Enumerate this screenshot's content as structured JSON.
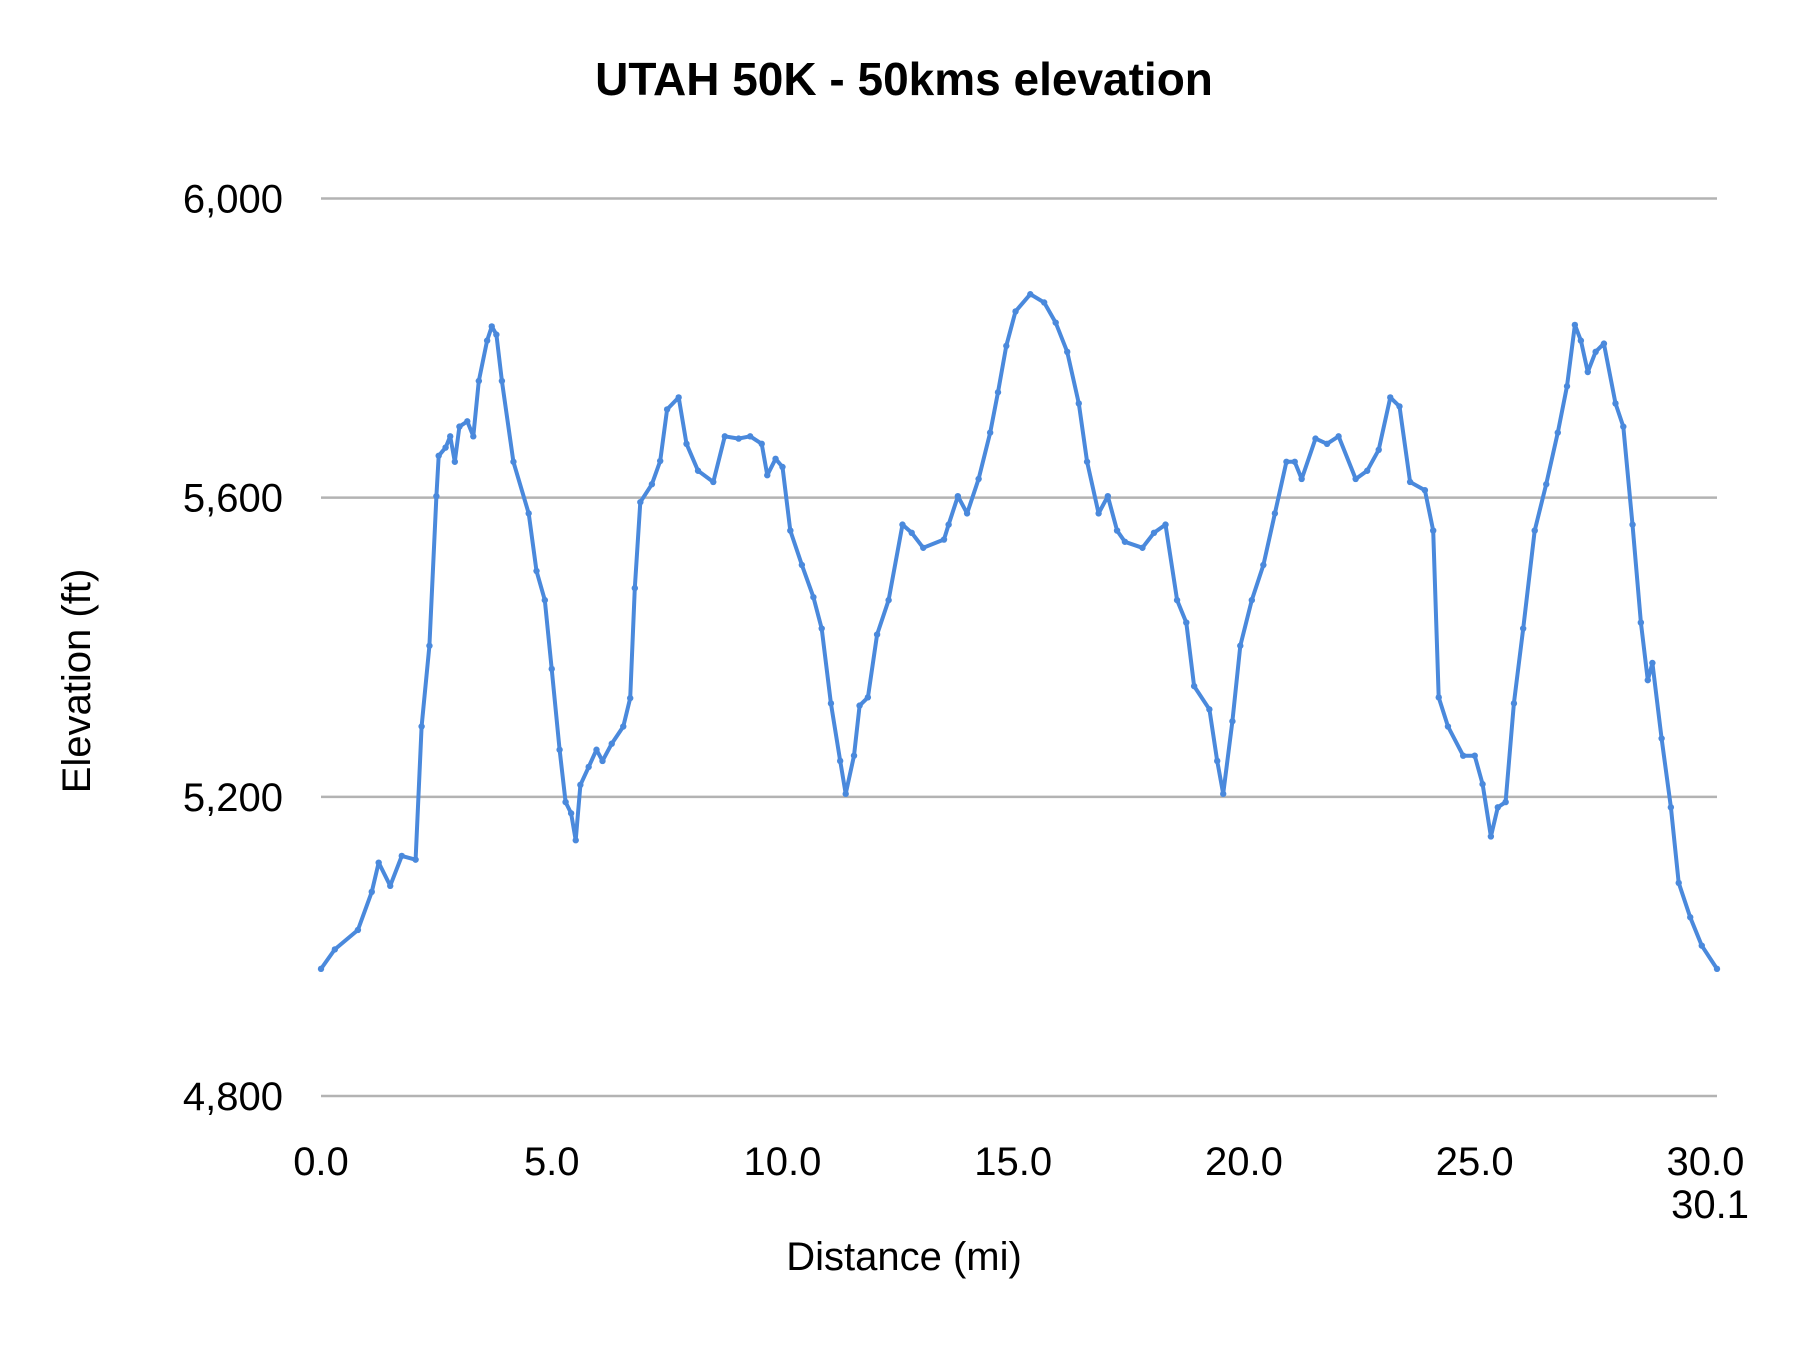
{
  "chart_data": {
    "type": "line",
    "title": "UTAH 50K - 50kms elevation",
    "xlabel": "Distance (mi)",
    "ylabel": "Elevation (ft)",
    "xlim": [
      0,
      30.25
    ],
    "ylim": [
      4800,
      6000
    ],
    "x_ticks": [
      "0.0",
      "5.0",
      "10.0",
      "15.0",
      "20.0",
      "25.0",
      "30.0",
      "30.1"
    ],
    "x_tick_values": [
      0,
      5,
      10,
      15,
      20,
      25,
      30,
      30.1
    ],
    "y_ticks": [
      "4,800",
      "5,200",
      "5,600",
      "6,000"
    ],
    "y_tick_values": [
      4800,
      5200,
      5600,
      6000
    ],
    "grid": "horizontal",
    "legend": "none",
    "colors": {
      "series": "#4a89dc",
      "grid": "#b3b3b3"
    },
    "series": [
      {
        "x": [
          0,
          0.3,
          0.8,
          1.1,
          1.25,
          1.5,
          1.75,
          2.05,
          2.18,
          2.35,
          2.5,
          2.55,
          2.7,
          2.8,
          2.9,
          3.0,
          3.17,
          3.3,
          3.42,
          3.6,
          3.7,
          3.8,
          3.92,
          4.17,
          4.5,
          4.67,
          4.85,
          5.0,
          5.17,
          5.3,
          5.42,
          5.52,
          5.62,
          5.8,
          5.97,
          6.1,
          6.3,
          6.55,
          6.7,
          6.8,
          6.92,
          7.17,
          7.35,
          7.5,
          7.75,
          7.92,
          8.17,
          8.5,
          8.75,
          9.05,
          9.3,
          9.55,
          9.67,
          9.85,
          10.0,
          10.17,
          10.42,
          10.67,
          10.85,
          11.05,
          11.25,
          11.37,
          11.55,
          11.67,
          11.85,
          12.05,
          12.3,
          12.6,
          12.8,
          13.05,
          13.5,
          13.6,
          13.8,
          14.0,
          14.25,
          14.5,
          14.67,
          14.85,
          15.05,
          15.37,
          15.67,
          15.92,
          16.17,
          16.42,
          16.6,
          16.85,
          17.05,
          17.25,
          17.42,
          17.8,
          18.05,
          18.3,
          18.55,
          18.75,
          18.92,
          19.25,
          19.42,
          19.55,
          19.75,
          19.92,
          20.17,
          20.42,
          20.67,
          20.92,
          21.1,
          21.25,
          21.55,
          21.8,
          22.05,
          22.42,
          22.67,
          22.92,
          23.17,
          23.37,
          23.6,
          23.92,
          24.1,
          24.22,
          24.42,
          24.75,
          25.0,
          25.17,
          25.35,
          25.5,
          25.67,
          25.85,
          26.05,
          26.3,
          26.55,
          26.8,
          27.0,
          27.17,
          27.3,
          27.45,
          27.62,
          27.8,
          28.05,
          28.22,
          28.42,
          28.6,
          28.75,
          28.85,
          29.05,
          29.25,
          29.42,
          29.67,
          29.92,
          30.25
        ],
        "y": [
          4970,
          4996,
          5022,
          5073,
          5112,
          5081,
          5121,
          5116,
          5294,
          5402,
          5602,
          5656,
          5667,
          5682,
          5648,
          5695,
          5702,
          5682,
          5756,
          5810,
          5829,
          5818,
          5756,
          5648,
          5579,
          5502,
          5463,
          5371,
          5263,
          5193,
          5178,
          5142,
          5216,
          5240,
          5263,
          5248,
          5271,
          5294,
          5332,
          5479,
          5594,
          5618,
          5649,
          5718,
          5734,
          5672,
          5636,
          5621,
          5682,
          5679,
          5682,
          5672,
          5630,
          5652,
          5641,
          5556,
          5510,
          5467,
          5425,
          5325,
          5248,
          5204,
          5255,
          5322,
          5333,
          5417,
          5463,
          5564,
          5553,
          5533,
          5544,
          5564,
          5602,
          5579,
          5625,
          5687,
          5741,
          5803,
          5849,
          5872,
          5861,
          5834,
          5795,
          5726,
          5648,
          5579,
          5602,
          5556,
          5541,
          5533,
          5553,
          5564,
          5463,
          5433,
          5348,
          5317,
          5248,
          5204,
          5301,
          5402,
          5463,
          5510,
          5579,
          5648,
          5648,
          5625,
          5679,
          5672,
          5682,
          5625,
          5636,
          5664,
          5734,
          5722,
          5621,
          5610,
          5556,
          5333,
          5294,
          5255,
          5255,
          5217,
          5147,
          5186,
          5193,
          5325,
          5425,
          5556,
          5618,
          5687,
          5749,
          5831,
          5810,
          5768,
          5795,
          5806,
          5726,
          5695,
          5564,
          5433,
          5356,
          5379,
          5278,
          5186,
          5085,
          5039,
          5001,
          4970
        ]
      }
    ]
  }
}
